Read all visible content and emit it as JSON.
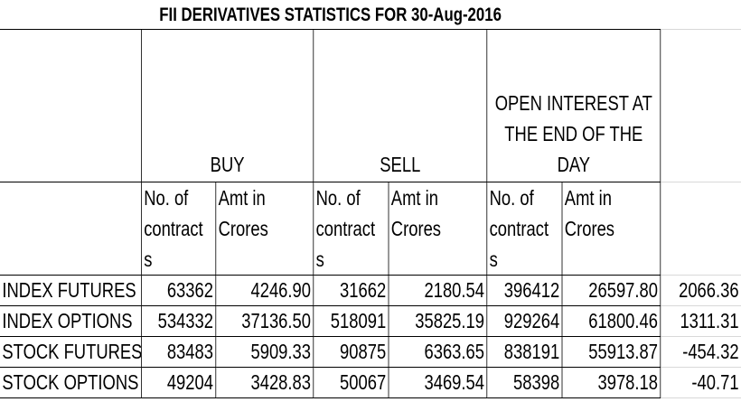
{
  "title": "FII DERIVATIVES STATISTICS FOR 30-Aug-2016",
  "groups": [
    "BUY",
    "SELL",
    "OPEN INTEREST AT THE END OF THE DAY"
  ],
  "subheaders": [
    "No. of contracts",
    "Amt in Crores"
  ],
  "rows": [
    {
      "label": "INDEX FUTURES",
      "values": [
        "63362",
        "4246.90",
        "31662",
        "2180.54",
        "396412",
        "26597.80"
      ],
      "net": "2066.36"
    },
    {
      "label": "INDEX OPTIONS",
      "values": [
        "534332",
        "37136.50",
        "518091",
        "35825.19",
        "929264",
        "61800.46"
      ],
      "net": "1311.31"
    },
    {
      "label": "STOCK FUTURES",
      "values": [
        "83483",
        "5909.33",
        "90875",
        "6363.65",
        "838191",
        "55913.87"
      ],
      "net": "-454.32"
    },
    {
      "label": "STOCK OPTIONS",
      "values": [
        "49204",
        "3428.83",
        "50067",
        "3469.54",
        "58398",
        "3978.18"
      ],
      "net": "-40.71"
    }
  ]
}
